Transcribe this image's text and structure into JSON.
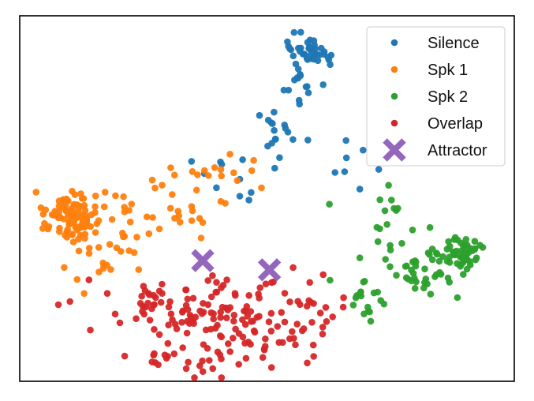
{
  "chart_data": {
    "type": "scatter",
    "title": "",
    "xlabel": "",
    "ylabel": "",
    "axes_ticks": false,
    "grid": false,
    "legend_position": "top-right",
    "xlim": [
      0,
      100
    ],
    "ylim": [
      0,
      100
    ],
    "series": [
      {
        "name": "Silence",
        "color": "#1f77b4",
        "marker": "dot",
        "clusters": [
          {
            "center": [
              59.5,
              90
            ],
            "spread": [
              2.6,
              1.8
            ],
            "count": 40
          },
          {
            "center": [
              57,
              80
            ],
            "spread": [
              1.8,
              3.0
            ],
            "count": 14
          },
          {
            "center": [
              52,
              69
            ],
            "spread": [
              2.6,
              3.5
            ],
            "count": 14
          },
          {
            "center": [
              45,
              55
            ],
            "spread": [
              4.5,
              3.5
            ],
            "count": 12
          },
          {
            "center": [
              65,
              60
            ],
            "spread": [
              3.0,
              4.0
            ],
            "count": 8
          }
        ]
      },
      {
        "name": "Spk 1",
        "color": "#ff7f0e",
        "marker": "dot",
        "clusters": [
          {
            "center": [
              10.5,
              45
            ],
            "spread": [
              2.6,
              3.6
            ],
            "count": 95
          },
          {
            "center": [
              15,
              37
            ],
            "spread": [
              4.0,
              4.5
            ],
            "count": 30
          },
          {
            "center": [
              30,
              48
            ],
            "spread": [
              7.0,
              4.5
            ],
            "count": 35
          },
          {
            "center": [
              40,
              58
            ],
            "spread": [
              3.5,
              3.0
            ],
            "count": 12
          }
        ]
      },
      {
        "name": "Spk 2",
        "color": "#2ca02c",
        "marker": "dot",
        "clusters": [
          {
            "center": [
              88.5,
              35
            ],
            "spread": [
              2.6,
              2.0
            ],
            "count": 60
          },
          {
            "center": [
              81,
              30
            ],
            "spread": [
              3.0,
              3.0
            ],
            "count": 30
          },
          {
            "center": [
              73,
              42
            ],
            "spread": [
              4.5,
              5.5
            ],
            "count": 18
          },
          {
            "center": [
              69,
              23
            ],
            "spread": [
              4.0,
              3.0
            ],
            "count": 18
          }
        ]
      },
      {
        "name": "Overlap",
        "color": "#d62728",
        "marker": "dot",
        "clusters": [
          {
            "center": [
              40,
              14
            ],
            "spread": [
              10.0,
              6.0
            ],
            "count": 120
          },
          {
            "center": [
              32,
              23
            ],
            "spread": [
              9.0,
              4.5
            ],
            "count": 45
          },
          {
            "center": [
              55,
              20
            ],
            "spread": [
              5.0,
              5.0
            ],
            "count": 25
          }
        ]
      },
      {
        "name": "Attractor",
        "color": "#9467bd",
        "marker": "x",
        "points": [
          {
            "x": 37,
            "y": 33
          },
          {
            "x": 50.5,
            "y": 30.5
          }
        ]
      }
    ]
  }
}
